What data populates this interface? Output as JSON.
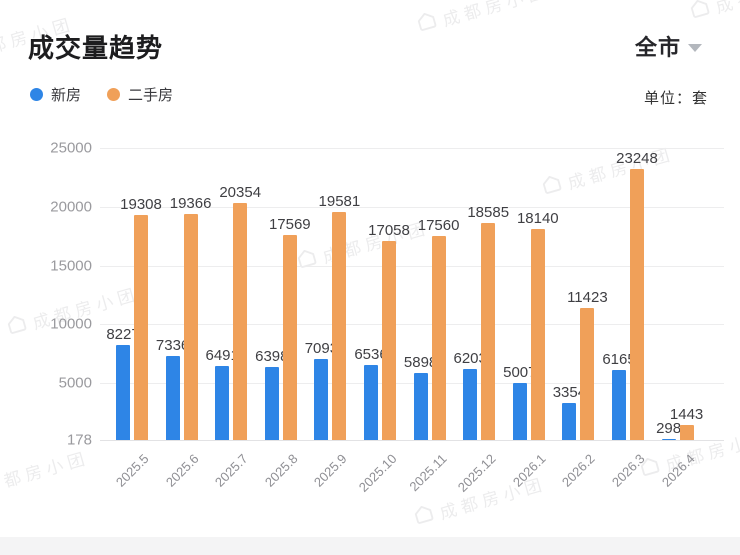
{
  "header": {
    "title": "成交量趋势",
    "region": "全市",
    "unit": "单位：套"
  },
  "legend": [
    {
      "label": "新房",
      "color": "#2e85e6"
    },
    {
      "label": "二手房",
      "color": "#f0a059"
    }
  ],
  "watermark": {
    "text": "成都房小团"
  },
  "chart_data": {
    "type": "bar",
    "title": "成交量趋势",
    "unit": "套",
    "categories": [
      "2025.5",
      "2025.6",
      "2025.7",
      "2025.8",
      "2025.9",
      "2025.10",
      "2025.11",
      "2025.12",
      "2026.1",
      "2026.2",
      "2026.3",
      "2026.4"
    ],
    "series": [
      {
        "name": "新房",
        "color": "#2e85e6",
        "values": [
          8227,
          7336,
          6491,
          6398,
          7093,
          6536,
          5898,
          6203,
          5007,
          3354,
          6165,
          298
        ]
      },
      {
        "name": "二手房",
        "color": "#f0a059",
        "values": [
          19308,
          19366,
          20354,
          17569,
          19581,
          17058,
          17560,
          18585,
          18140,
          11423,
          23248,
          1443
        ]
      }
    ],
    "y_axis": {
      "min": 178,
      "max": 25000,
      "ticks": [
        178,
        5000,
        10000,
        15000,
        20000,
        25000
      ]
    },
    "data_labels": true,
    "grid": true,
    "legend_position": "top-left",
    "x_label_rotation": -45
  }
}
